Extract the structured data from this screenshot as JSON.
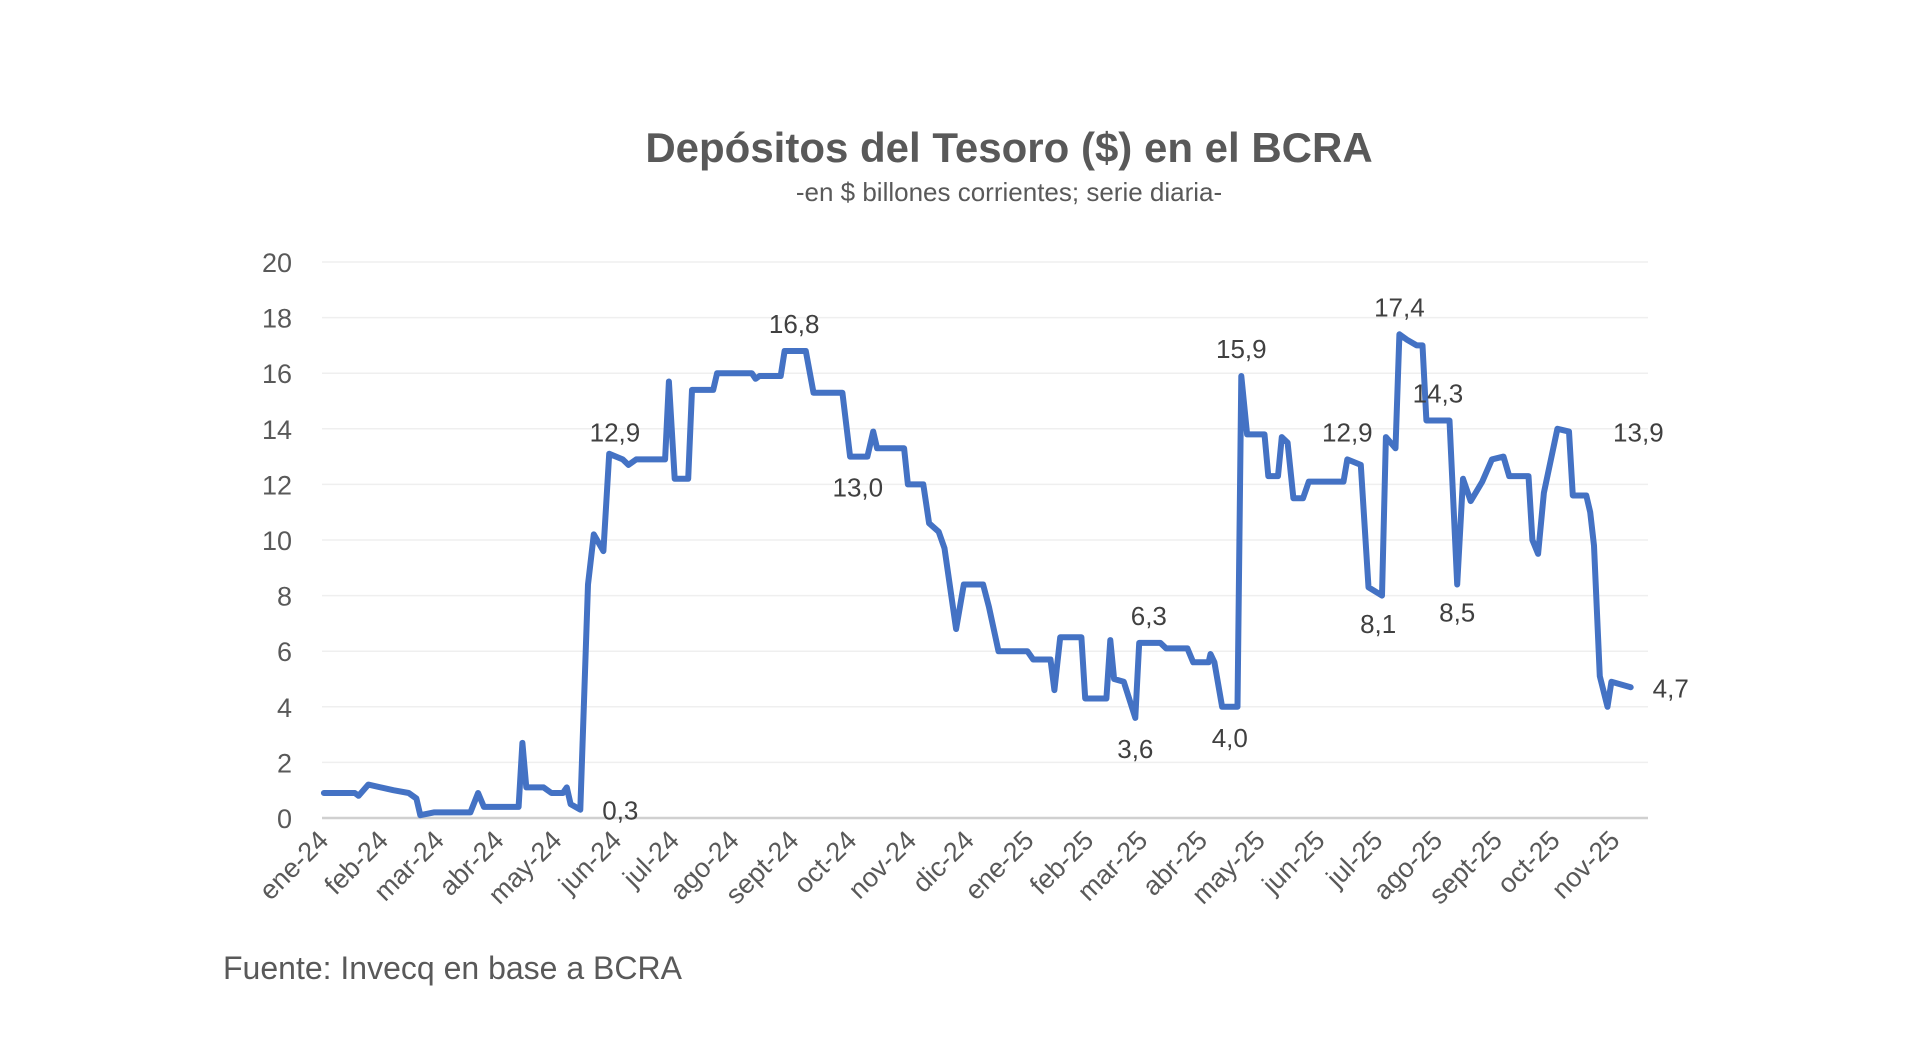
{
  "chart_data": {
    "type": "line",
    "title": "Depósitos del Tesoro ($) en el BCRA",
    "subtitle": "-en $ billones corrientes; serie diaria-",
    "source": "Fuente: Invecq en base a BCRA",
    "xlabel": "",
    "ylabel": "",
    "ylim": [
      0,
      20
    ],
    "yticks": [
      "0",
      "2",
      "4",
      "6",
      "8",
      "10",
      "12",
      "14",
      "16",
      "18",
      "20"
    ],
    "xlim": [
      "2024-01-01",
      "2025-11-19"
    ],
    "xticks": [
      "ene-24",
      "feb-24",
      "mar-24",
      "abr-24",
      "may-24",
      "jun-24",
      "jul-24",
      "ago-24",
      "sept-24",
      "oct-24",
      "nov-24",
      "dic-24",
      "ene-25",
      "feb-25",
      "mar-25",
      "abr-25",
      "may-25",
      "jun-25",
      "jul-25",
      "ago-25",
      "sept-25",
      "oct-25",
      "nov-25"
    ],
    "grid": true,
    "legend": "none",
    "line_color": "#4472C4",
    "series": [
      {
        "x": [
          "2024-01-02",
          "2024-01-18",
          "2024-01-20",
          "2024-01-25",
          "2024-02-07",
          "2024-02-15",
          "2024-02-19",
          "2024-02-21",
          "2024-02-28",
          "2024-03-18",
          "2024-03-22",
          "2024-03-25",
          "2024-04-12",
          "2024-04-14",
          "2024-04-16",
          "2024-04-25",
          "2024-04-29",
          "2024-05-05",
          "2024-05-07",
          "2024-05-09",
          "2024-05-14",
          "2024-05-18",
          "2024-05-21",
          "2024-05-26",
          "2024-05-29",
          "2024-06-05",
          "2024-06-08",
          "2024-06-12",
          "2024-06-27",
          "2024-06-29",
          "2024-07-02",
          "2024-07-09",
          "2024-07-11",
          "2024-07-22",
          "2024-07-24",
          "2024-08-11",
          "2024-08-13",
          "2024-08-15",
          "2024-08-26",
          "2024-08-28",
          "2024-09-08",
          "2024-09-12",
          "2024-09-27",
          "2024-10-01",
          "2024-10-10",
          "2024-10-13",
          "2024-10-15",
          "2024-10-29",
          "2024-10-31",
          "2024-11-08",
          "2024-11-11",
          "2024-11-16",
          "2024-11-19",
          "2024-11-25",
          "2024-11-29",
          "2024-12-09",
          "2024-12-12",
          "2024-12-17",
          "2025-01-01",
          "2025-01-04",
          "2025-01-13",
          "2025-01-15",
          "2025-01-18",
          "2025-01-29",
          "2025-01-31",
          "2025-02-11",
          "2025-02-13",
          "2025-02-15",
          "2025-02-20",
          "2025-02-26",
          "2025-02-28",
          "2025-03-11",
          "2025-03-14",
          "2025-03-25",
          "2025-03-28",
          "2025-04-05",
          "2025-04-06",
          "2025-04-08",
          "2025-04-12",
          "2025-04-20",
          "2025-04-22",
          "2025-04-25",
          "2025-05-04",
          "2025-05-06",
          "2025-05-11",
          "2025-05-13",
          "2025-05-16",
          "2025-05-19",
          "2025-05-24",
          "2025-05-27",
          "2025-06-14",
          "2025-06-16",
          "2025-06-23",
          "2025-06-27",
          "2025-07-04",
          "2025-07-06",
          "2025-07-11",
          "2025-07-13",
          "2025-07-17",
          "2025-07-22",
          "2025-07-25",
          "2025-07-27",
          "2025-08-08",
          "2025-08-12",
          "2025-08-15",
          "2025-08-19",
          "2025-08-25",
          "2025-08-30",
          "2025-09-05",
          "2025-09-08",
          "2025-09-18",
          "2025-09-20",
          "2025-09-23",
          "2025-09-26",
          "2025-10-03",
          "2025-10-09",
          "2025-10-11",
          "2025-10-18",
          "2025-10-20",
          "2025-10-22",
          "2025-10-25",
          "2025-10-29",
          "2025-10-31",
          "2025-11-10"
        ],
        "values": [
          0.9,
          0.9,
          0.8,
          1.2,
          1.0,
          0.9,
          0.7,
          0.1,
          0.2,
          0.2,
          0.9,
          0.4,
          0.4,
          2.7,
          1.1,
          1.1,
          0.9,
          0.9,
          1.1,
          0.5,
          0.3,
          8.4,
          10.2,
          9.6,
          13.1,
          12.9,
          12.7,
          12.9,
          12.9,
          15.7,
          12.2,
          12.2,
          15.4,
          15.4,
          16.0,
          16.0,
          15.8,
          15.9,
          15.9,
          16.8,
          16.8,
          15.3,
          15.3,
          13.0,
          13.0,
          13.9,
          13.3,
          13.3,
          12.0,
          12.0,
          10.6,
          10.3,
          9.7,
          6.8,
          8.4,
          8.4,
          7.6,
          6.0,
          6.0,
          5.7,
          5.7,
          4.6,
          6.5,
          6.5,
          4.3,
          4.3,
          6.4,
          5.0,
          4.9,
          3.6,
          6.3,
          6.3,
          6.1,
          6.1,
          5.6,
          5.6,
          5.9,
          5.6,
          4.0,
          4.0,
          15.9,
          13.8,
          13.8,
          12.3,
          12.3,
          13.7,
          13.5,
          11.5,
          11.5,
          12.1,
          12.1,
          12.9,
          12.7,
          8.3,
          8.0,
          13.7,
          13.3,
          17.4,
          17.2,
          17.0,
          17.0,
          14.3,
          14.3,
          8.4,
          12.2,
          11.4,
          12.1,
          12.9,
          13.0,
          12.3,
          12.3,
          10.0,
          9.5,
          11.7,
          14.0,
          13.9,
          11.6,
          11.6,
          11.0,
          9.8,
          5.1,
          4.0,
          4.9,
          4.7
        ]
      }
    ],
    "annotations": [
      {
        "x": "2024-05-14",
        "value": 0.3,
        "label": "0,3",
        "position": "right"
      },
      {
        "x": "2024-06-01",
        "value": 12.9,
        "label": "12,9",
        "position": "above"
      },
      {
        "x": "2024-09-02",
        "value": 16.8,
        "label": "16,8",
        "position": "above"
      },
      {
        "x": "2024-10-05",
        "value": 13.0,
        "label": "13,0",
        "position": "below"
      },
      {
        "x": "2025-02-26",
        "value": 3.6,
        "label": "3,6",
        "position": "below"
      },
      {
        "x": "2025-03-05",
        "value": 6.3,
        "label": "6,3",
        "position": "above"
      },
      {
        "x": "2025-04-16",
        "value": 4.0,
        "label": "4,0",
        "position": "below"
      },
      {
        "x": "2025-04-22",
        "value": 15.9,
        "label": "15,9",
        "position": "above"
      },
      {
        "x": "2025-06-16",
        "value": 12.9,
        "label": "12,9",
        "position": "above"
      },
      {
        "x": "2025-07-02",
        "value": 8.1,
        "label": "8,1",
        "position": "below"
      },
      {
        "x": "2025-07-13",
        "value": 17.4,
        "label": "17,4",
        "position": "above"
      },
      {
        "x": "2025-08-02",
        "value": 14.3,
        "label": "14,3",
        "position": "above"
      },
      {
        "x": "2025-08-12",
        "value": 8.5,
        "label": "8,5",
        "position": "below"
      },
      {
        "x": "2025-11-14",
        "value": 13.9,
        "label": "13,9",
        "position": "center"
      },
      {
        "x": "2025-11-10",
        "value": 4.7,
        "label": "4,7",
        "position": "right"
      }
    ]
  }
}
